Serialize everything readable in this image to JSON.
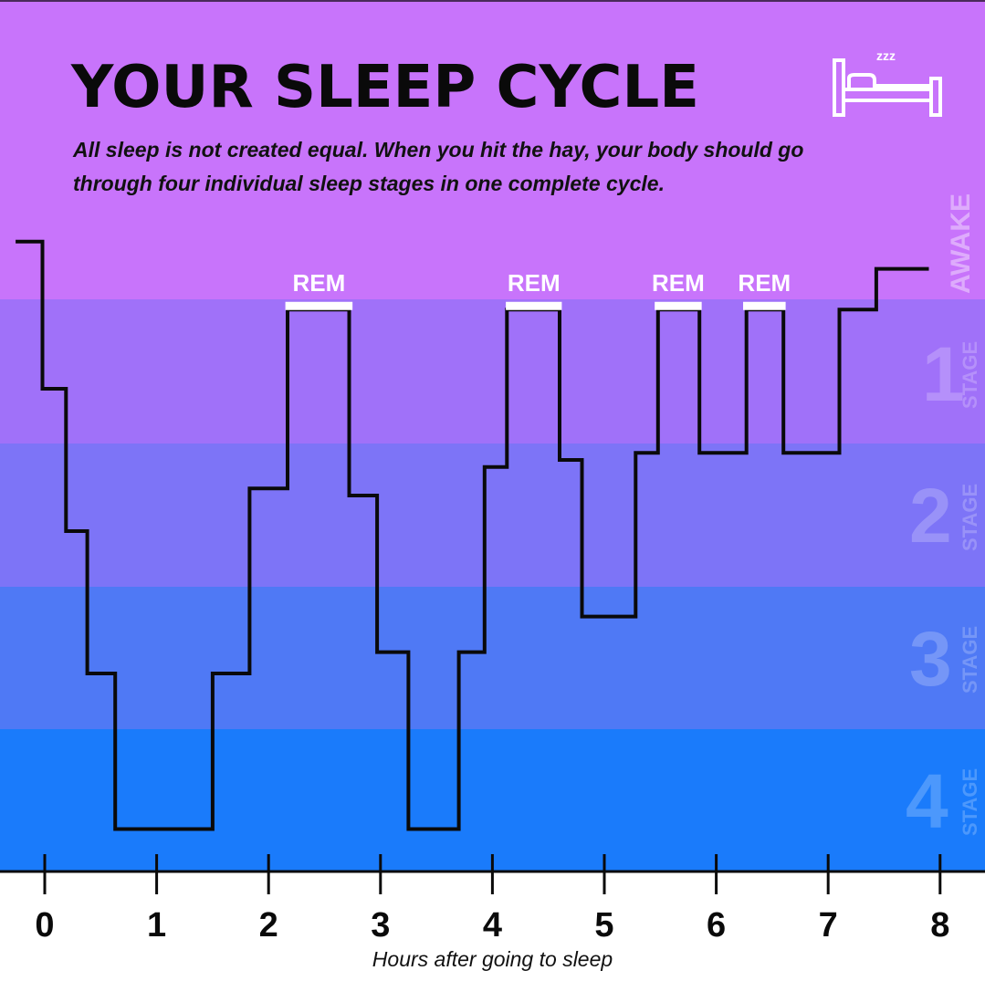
{
  "header": {
    "title": "YOUR SLEEP CYCLE",
    "subtitle": "All sleep is not created equal. When you hit the hay, your body should go through four individual sleep stages in one complete cycle."
  },
  "icons": {
    "bed": "bed-with-zzz-icon",
    "zzz": "zzz"
  },
  "stages": {
    "awake": "AWAKE",
    "stage_word": "STAGE",
    "s1": "1",
    "s2": "2",
    "s3": "3",
    "s4": "4"
  },
  "colors": {
    "awake": "#c874fb",
    "stage1": "#a071f9",
    "stage2": "#7d74f7",
    "stage3": "#4f79f5",
    "stage4": "#1a7bfb",
    "line": "#0a0a0a",
    "rem_bar": "#ffffff"
  },
  "chart_data": {
    "type": "line",
    "step": true,
    "title": "YOUR SLEEP CYCLE",
    "xlabel": "Hours after going to sleep",
    "ylabel": "",
    "xlim": [
      0,
      8
    ],
    "x_ticks": [
      "0",
      "1",
      "2",
      "3",
      "4",
      "5",
      "6",
      "7",
      "8"
    ],
    "y_levels": [
      "AWAKE",
      "1",
      "2",
      "3",
      "4"
    ],
    "depth_scale": "0 = AWAKE, 1 = STAGE 1 / REM top, 4 = STAGE 4",
    "series": [
      {
        "points": [
          [
            -0.26,
            -0.3
          ],
          [
            -0.02,
            -0.3
          ],
          [
            -0.02,
            1.0
          ],
          [
            0.19,
            1.0
          ],
          [
            0.19,
            2.0
          ],
          [
            0.38,
            2.0
          ],
          [
            0.38,
            3.0
          ],
          [
            0.63,
            3.0
          ],
          [
            0.63,
            4.1
          ],
          [
            1.5,
            4.1
          ],
          [
            1.5,
            3.0
          ],
          [
            1.83,
            3.0
          ],
          [
            1.83,
            1.7
          ],
          [
            2.17,
            1.7
          ],
          [
            2.17,
            0.3
          ],
          [
            2.72,
            0.3
          ],
          [
            2.72,
            1.75
          ],
          [
            2.97,
            1.75
          ],
          [
            2.97,
            2.85
          ],
          [
            3.25,
            2.85
          ],
          [
            3.25,
            4.1
          ],
          [
            3.7,
            4.1
          ],
          [
            3.7,
            2.85
          ],
          [
            3.93,
            2.85
          ],
          [
            3.93,
            1.55
          ],
          [
            4.13,
            1.55
          ],
          [
            4.13,
            0.3
          ],
          [
            4.6,
            0.3
          ],
          [
            4.6,
            1.5
          ],
          [
            4.8,
            1.5
          ],
          [
            4.8,
            2.6
          ],
          [
            5.28,
            2.6
          ],
          [
            5.28,
            1.45
          ],
          [
            5.48,
            1.45
          ],
          [
            5.48,
            0.3
          ],
          [
            5.85,
            0.3
          ],
          [
            5.85,
            1.45
          ],
          [
            6.27,
            1.45
          ],
          [
            6.27,
            0.3
          ],
          [
            6.6,
            0.3
          ],
          [
            6.6,
            1.45
          ],
          [
            7.1,
            1.45
          ],
          [
            7.1,
            0.3
          ],
          [
            7.43,
            0.3
          ],
          [
            7.43,
            -0.06
          ],
          [
            7.9,
            -0.06
          ]
        ]
      }
    ],
    "rem_periods": [
      {
        "label": "REM",
        "start": 2.15,
        "end": 2.75
      },
      {
        "label": "REM",
        "start": 4.12,
        "end": 4.62
      },
      {
        "label": "REM",
        "start": 5.45,
        "end": 5.87
      },
      {
        "label": "REM",
        "start": 6.24,
        "end": 6.62
      }
    ]
  }
}
